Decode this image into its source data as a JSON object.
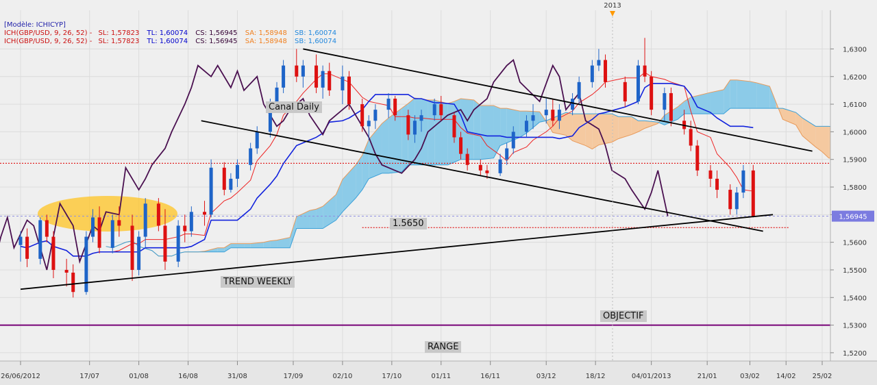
{
  "legend": {
    "model": "[Modèle: ICHICYP]",
    "lines": [
      {
        "prefix": "ICH(GBP/USD, 9, 26, 52) -",
        "sl": "SL: 1,57823",
        "tl": "TL: 1,60074",
        "cs": "CS: 1,56945",
        "sa": "SA: 1,58948",
        "sb": "SB: 1,60074",
        "prefix_color": "#cc1111",
        "tl_color": "#0000cc",
        "cs_color": "#330033"
      },
      {
        "prefix": "ICH(GBP/USD, 9, 26, 52) -",
        "sl": "SL: 1,57823",
        "tl": "TL: 1,60074",
        "cs": "CS: 1,56945",
        "sa": "SA: 1,58948",
        "sb": "SB: 1,60074",
        "prefix_color": "#cc1111",
        "tl_color": "#0000cc",
        "cs_color": "#330033"
      }
    ]
  },
  "annotations": {
    "canal": "Canal Daily",
    "level": "1.5650",
    "trend": "TREND WEEKLY",
    "objectif": "OBJECTIF",
    "range": "RANGE",
    "year_marker": "2013"
  },
  "colors": {
    "up_candle": "#1e64c8",
    "down_candle": "#dd1111",
    "tenkan": "#ee2222",
    "kijun": "#1122dd",
    "chikou": "#4a1050",
    "cloud_bull": "#8ccbe8",
    "cloud_bear": "#f5c9a0",
    "range": "#770077",
    "price_tag_bg": "#7b7be0"
  },
  "chart_data": {
    "type": "candlestick",
    "symbol": "GBP/USD",
    "ylim": [
      1.517,
      1.644
    ],
    "y_ticks": [
      "1,6300",
      "1,6200",
      "1,6100",
      "1,6000",
      "1,5900",
      "1,5800",
      "1,5700",
      "1,5600",
      "1,5500",
      "1,5400",
      "1,5300",
      "1,5200"
    ],
    "x_ticks": [
      "26/06/2012",
      "17/07",
      "01/08",
      "16/08",
      "31/08",
      "17/09",
      "02/10",
      "17/10",
      "01/11",
      "16/11",
      "03/12",
      "18/12",
      "04/01/2013",
      "21/01",
      "03/02",
      "14/02",
      "25/02"
    ],
    "last_price_label": "1,56945",
    "last_price": 1.56945,
    "horizontal_levels": [
      {
        "name": "resistance",
        "value": 1.5886,
        "style": "red-dotted"
      },
      {
        "name": "current",
        "value": 1.56945,
        "style": "blue-dotted"
      },
      {
        "name": "support-1.5650",
        "value": 1.5653,
        "style": "red-dotted"
      },
      {
        "name": "range",
        "value": 1.53,
        "style": "purple-solid"
      }
    ],
    "trendlines": [
      {
        "name": "trend-weekly",
        "from": [
          "2012-06-26",
          1.543
        ],
        "to": [
          "2013-02-10",
          1.57
        ]
      },
      {
        "name": "canal-upper",
        "from": [
          "2012-09-20",
          1.63
        ],
        "to": [
          "2013-02-22",
          1.593
        ]
      },
      {
        "name": "canal-lower",
        "from": [
          "2012-08-20",
          1.604
        ],
        "to": [
          "2013-02-07",
          1.564
        ]
      }
    ],
    "ohlc": [
      {
        "d": "2012-06-26",
        "o": 1.559,
        "h": 1.564,
        "l": 1.553,
        "c": 1.562
      },
      {
        "d": "2012-06-28",
        "o": 1.562,
        "h": 1.565,
        "l": 1.551,
        "c": 1.554
      },
      {
        "d": "2012-07-02",
        "o": 1.554,
        "h": 1.569,
        "l": 1.552,
        "c": 1.568
      },
      {
        "d": "2012-07-04",
        "o": 1.568,
        "h": 1.57,
        "l": 1.56,
        "c": 1.562
      },
      {
        "d": "2012-07-06",
        "o": 1.562,
        "h": 1.564,
        "l": 1.547,
        "c": 1.55
      },
      {
        "d": "2012-07-10",
        "o": 1.55,
        "h": 1.554,
        "l": 1.544,
        "c": 1.549
      },
      {
        "d": "2012-07-12",
        "o": 1.549,
        "h": 1.552,
        "l": 1.54,
        "c": 1.542
      },
      {
        "d": "2012-07-16",
        "o": 1.542,
        "h": 1.564,
        "l": 1.541,
        "c": 1.562
      },
      {
        "d": "2012-07-18",
        "o": 1.562,
        "h": 1.572,
        "l": 1.56,
        "c": 1.569
      },
      {
        "d": "2012-07-20",
        "o": 1.569,
        "h": 1.573,
        "l": 1.556,
        "c": 1.558
      },
      {
        "d": "2012-07-24",
        "o": 1.558,
        "h": 1.57,
        "l": 1.556,
        "c": 1.568
      },
      {
        "d": "2012-07-26",
        "o": 1.568,
        "h": 1.573,
        "l": 1.562,
        "c": 1.566
      },
      {
        "d": "2012-07-30",
        "o": 1.566,
        "h": 1.57,
        "l": 1.546,
        "c": 1.55
      },
      {
        "d": "2012-08-01",
        "o": 1.55,
        "h": 1.564,
        "l": 1.548,
        "c": 1.562
      },
      {
        "d": "2012-08-03",
        "o": 1.562,
        "h": 1.576,
        "l": 1.558,
        "c": 1.574
      },
      {
        "d": "2012-08-07",
        "o": 1.574,
        "h": 1.576,
        "l": 1.564,
        "c": 1.566
      },
      {
        "d": "2012-08-09",
        "o": 1.566,
        "h": 1.572,
        "l": 1.55,
        "c": 1.553
      },
      {
        "d": "2012-08-13",
        "o": 1.553,
        "h": 1.568,
        "l": 1.551,
        "c": 1.566
      },
      {
        "d": "2012-08-15",
        "o": 1.566,
        "h": 1.57,
        "l": 1.56,
        "c": 1.564
      },
      {
        "d": "2012-08-17",
        "o": 1.564,
        "h": 1.573,
        "l": 1.562,
        "c": 1.571
      },
      {
        "d": "2012-08-21",
        "o": 1.571,
        "h": 1.575,
        "l": 1.566,
        "c": 1.57
      },
      {
        "d": "2012-08-23",
        "o": 1.57,
        "h": 1.59,
        "l": 1.569,
        "c": 1.587
      },
      {
        "d": "2012-08-27",
        "o": 1.587,
        "h": 1.589,
        "l": 1.577,
        "c": 1.579
      },
      {
        "d": "2012-08-29",
        "o": 1.579,
        "h": 1.585,
        "l": 1.578,
        "c": 1.583
      },
      {
        "d": "2012-08-31",
        "o": 1.583,
        "h": 1.59,
        "l": 1.58,
        "c": 1.588
      },
      {
        "d": "2012-09-04",
        "o": 1.588,
        "h": 1.596,
        "l": 1.586,
        "c": 1.594
      },
      {
        "d": "2012-09-06",
        "o": 1.594,
        "h": 1.602,
        "l": 1.592,
        "c": 1.6
      },
      {
        "d": "2012-09-10",
        "o": 1.6,
        "h": 1.612,
        "l": 1.598,
        "c": 1.61
      },
      {
        "d": "2012-09-12",
        "o": 1.61,
        "h": 1.618,
        "l": 1.608,
        "c": 1.616
      },
      {
        "d": "2012-09-14",
        "o": 1.616,
        "h": 1.626,
        "l": 1.614,
        "c": 1.624
      },
      {
        "d": "2012-09-18",
        "o": 1.624,
        "h": 1.63,
        "l": 1.618,
        "c": 1.62
      },
      {
        "d": "2012-09-20",
        "o": 1.62,
        "h": 1.626,
        "l": 1.616,
        "c": 1.624
      },
      {
        "d": "2012-09-24",
        "o": 1.624,
        "h": 1.628,
        "l": 1.614,
        "c": 1.616
      },
      {
        "d": "2012-09-26",
        "o": 1.616,
        "h": 1.624,
        "l": 1.612,
        "c": 1.622
      },
      {
        "d": "2012-09-28",
        "o": 1.622,
        "h": 1.625,
        "l": 1.613,
        "c": 1.615
      },
      {
        "d": "2012-10-02",
        "o": 1.615,
        "h": 1.624,
        "l": 1.61,
        "c": 1.62
      },
      {
        "d": "2012-10-04",
        "o": 1.62,
        "h": 1.622,
        "l": 1.608,
        "c": 1.61
      },
      {
        "d": "2012-10-08",
        "o": 1.61,
        "h": 1.612,
        "l": 1.6,
        "c": 1.602
      },
      {
        "d": "2012-10-10",
        "o": 1.602,
        "h": 1.606,
        "l": 1.597,
        "c": 1.604
      },
      {
        "d": "2012-10-12",
        "o": 1.604,
        "h": 1.61,
        "l": 1.601,
        "c": 1.608
      },
      {
        "d": "2012-10-16",
        "o": 1.608,
        "h": 1.614,
        "l": 1.605,
        "c": 1.612
      },
      {
        "d": "2012-10-18",
        "o": 1.612,
        "h": 1.613,
        "l": 1.604,
        "c": 1.606
      },
      {
        "d": "2012-10-22",
        "o": 1.606,
        "h": 1.608,
        "l": 1.597,
        "c": 1.599
      },
      {
        "d": "2012-10-24",
        "o": 1.599,
        "h": 1.606,
        "l": 1.596,
        "c": 1.604
      },
      {
        "d": "2012-10-26",
        "o": 1.604,
        "h": 1.608,
        "l": 1.6,
        "c": 1.606
      },
      {
        "d": "2012-10-30",
        "o": 1.606,
        "h": 1.612,
        "l": 1.604,
        "c": 1.61
      },
      {
        "d": "2012-11-01",
        "o": 1.61,
        "h": 1.613,
        "l": 1.604,
        "c": 1.606
      },
      {
        "d": "2012-11-05",
        "o": 1.606,
        "h": 1.607,
        "l": 1.596,
        "c": 1.598
      },
      {
        "d": "2012-11-07",
        "o": 1.598,
        "h": 1.6,
        "l": 1.59,
        "c": 1.592
      },
      {
        "d": "2012-11-09",
        "o": 1.592,
        "h": 1.594,
        "l": 1.586,
        "c": 1.588
      },
      {
        "d": "2012-11-13",
        "o": 1.588,
        "h": 1.59,
        "l": 1.584,
        "c": 1.586
      },
      {
        "d": "2012-11-15",
        "o": 1.586,
        "h": 1.588,
        "l": 1.583,
        "c": 1.585
      },
      {
        "d": "2012-11-19",
        "o": 1.585,
        "h": 1.592,
        "l": 1.584,
        "c": 1.59
      },
      {
        "d": "2012-11-21",
        "o": 1.59,
        "h": 1.596,
        "l": 1.588,
        "c": 1.594
      },
      {
        "d": "2012-11-23",
        "o": 1.594,
        "h": 1.602,
        "l": 1.592,
        "c": 1.6
      },
      {
        "d": "2012-11-27",
        "o": 1.6,
        "h": 1.606,
        "l": 1.598,
        "c": 1.604
      },
      {
        "d": "2012-11-29",
        "o": 1.604,
        "h": 1.61,
        "l": 1.601,
        "c": 1.606
      },
      {
        "d": "2012-12-03",
        "o": 1.606,
        "h": 1.612,
        "l": 1.603,
        "c": 1.608
      },
      {
        "d": "2012-12-05",
        "o": 1.608,
        "h": 1.612,
        "l": 1.602,
        "c": 1.604
      },
      {
        "d": "2012-12-07",
        "o": 1.604,
        "h": 1.61,
        "l": 1.601,
        "c": 1.608
      },
      {
        "d": "2012-12-11",
        "o": 1.608,
        "h": 1.614,
        "l": 1.606,
        "c": 1.612
      },
      {
        "d": "2012-12-13",
        "o": 1.612,
        "h": 1.62,
        "l": 1.61,
        "c": 1.618
      },
      {
        "d": "2012-12-17",
        "o": 1.618,
        "h": 1.626,
        "l": 1.616,
        "c": 1.624
      },
      {
        "d": "2012-12-19",
        "o": 1.624,
        "h": 1.63,
        "l": 1.622,
        "c": 1.626
      },
      {
        "d": "2012-12-21",
        "o": 1.626,
        "h": 1.628,
        "l": 1.616,
        "c": 1.618
      },
      {
        "d": "2012-12-27",
        "o": 1.618,
        "h": 1.62,
        "l": 1.609,
        "c": 1.611
      },
      {
        "d": "2012-12-31",
        "o": 1.611,
        "h": 1.626,
        "l": 1.61,
        "c": 1.624
      },
      {
        "d": "2013-01-02",
        "o": 1.624,
        "h": 1.634,
        "l": 1.618,
        "c": 1.62
      },
      {
        "d": "2013-01-04",
        "o": 1.62,
        "h": 1.622,
        "l": 1.606,
        "c": 1.608
      },
      {
        "d": "2013-01-08",
        "o": 1.608,
        "h": 1.616,
        "l": 1.604,
        "c": 1.614
      },
      {
        "d": "2013-01-10",
        "o": 1.614,
        "h": 1.616,
        "l": 1.602,
        "c": 1.604
      },
      {
        "d": "2013-01-14",
        "o": 1.604,
        "h": 1.608,
        "l": 1.599,
        "c": 1.601
      },
      {
        "d": "2013-01-16",
        "o": 1.601,
        "h": 1.604,
        "l": 1.593,
        "c": 1.595
      },
      {
        "d": "2013-01-18",
        "o": 1.595,
        "h": 1.597,
        "l": 1.584,
        "c": 1.586
      },
      {
        "d": "2013-01-22",
        "o": 1.586,
        "h": 1.588,
        "l": 1.58,
        "c": 1.583
      },
      {
        "d": "2013-01-24",
        "o": 1.583,
        "h": 1.586,
        "l": 1.576,
        "c": 1.579
      },
      {
        "d": "2013-01-28",
        "o": 1.579,
        "h": 1.581,
        "l": 1.57,
        "c": 1.572
      },
      {
        "d": "2013-01-30",
        "o": 1.572,
        "h": 1.58,
        "l": 1.57,
        "c": 1.578
      },
      {
        "d": "2013-02-01",
        "o": 1.578,
        "h": 1.588,
        "l": 1.576,
        "c": 1.586
      },
      {
        "d": "2013-02-04",
        "o": 1.586,
        "h": 1.588,
        "l": 1.569,
        "c": 1.56945
      }
    ]
  }
}
